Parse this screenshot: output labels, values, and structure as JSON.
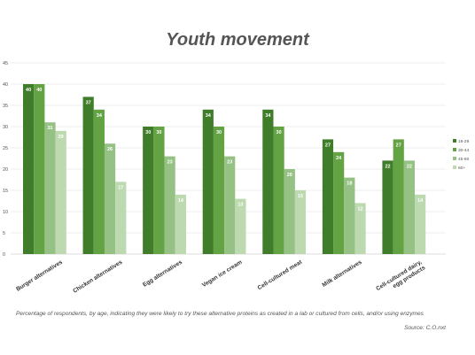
{
  "chart_data": {
    "type": "bar",
    "title": "Youth movement",
    "categories": [
      "Burger alternatives",
      "Chicken alternatives",
      "Egg alternatives",
      "Vegan ice cream",
      "Cell-cultured meat",
      "Milk alternatives",
      [
        "Cell-cultured dairy,",
        "egg products"
      ]
    ],
    "series": [
      {
        "name": "18-29",
        "color": "#3f7d2a",
        "values": [
          40,
          37,
          30,
          34,
          34,
          27,
          22
        ]
      },
      {
        "name": "30-44",
        "color": "#63a344",
        "values": [
          40,
          34,
          30,
          30,
          30,
          24,
          27
        ]
      },
      {
        "name": "45-60",
        "color": "#95c184",
        "values": [
          31,
          26,
          23,
          23,
          20,
          18,
          22
        ]
      },
      {
        "name": "60+",
        "color": "#bcd9b0",
        "values": [
          29,
          17,
          14,
          13,
          15,
          12,
          14
        ]
      }
    ],
    "yticks": [
      0,
      5,
      10,
      15,
      20,
      25,
      30,
      35,
      40,
      45
    ],
    "ylim": [
      0,
      45
    ],
    "grid": true,
    "legend_position": "right",
    "caption": "Percentage of respondents, by age, indicating they were likely to try these alternative proteins as created in a lab or cultured from cells, and/or using enzymes",
    "source": "Source: C.O.nxt"
  }
}
